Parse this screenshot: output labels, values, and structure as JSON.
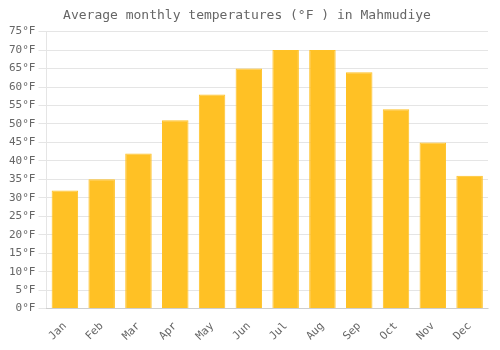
{
  "chart_data": {
    "type": "bar",
    "title": "Average monthly temperatures (°F ) in Mahmudiye",
    "categories": [
      "Jan",
      "Feb",
      "Mar",
      "Apr",
      "May",
      "Jun",
      "Jul",
      "Aug",
      "Sep",
      "Oct",
      "Nov",
      "Dec"
    ],
    "values": [
      32,
      35,
      42,
      51,
      58,
      65,
      70,
      70,
      64,
      54,
      45,
      36
    ],
    "color": "#FFC125",
    "ylim": [
      0,
      75
    ],
    "yticks": [
      {
        "value": 0,
        "label": "0°F"
      },
      {
        "value": 5,
        "label": "5°F"
      },
      {
        "value": 10,
        "label": "10°F"
      },
      {
        "value": 15,
        "label": "15°F"
      },
      {
        "value": 20,
        "label": "20°F"
      },
      {
        "value": 25,
        "label": "25°F"
      },
      {
        "value": 30,
        "label": "30°F"
      },
      {
        "value": 35,
        "label": "35°F"
      },
      {
        "value": 40,
        "label": "40°F"
      },
      {
        "value": 45,
        "label": "45°F"
      },
      {
        "value": 50,
        "label": "50°F"
      },
      {
        "value": 55,
        "label": "55°F"
      },
      {
        "value": 60,
        "label": "60°F"
      },
      {
        "value": 65,
        "label": "65°F"
      },
      {
        "value": 70,
        "label": "70°F"
      },
      {
        "value": 75,
        "label": "75°F"
      }
    ],
    "grid": true
  }
}
